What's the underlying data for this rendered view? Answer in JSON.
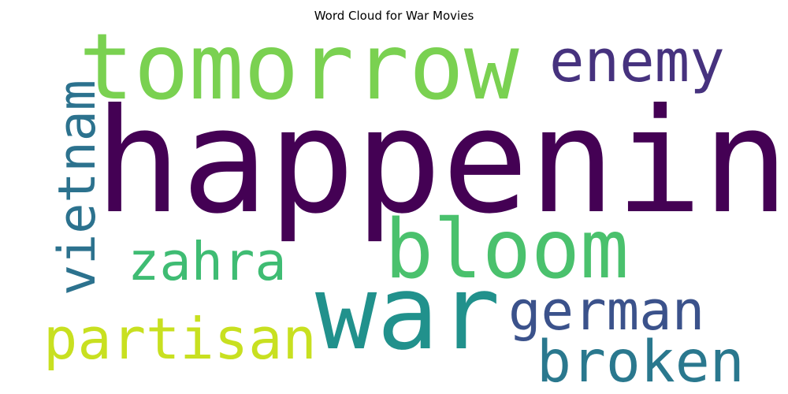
{
  "chart_data": {
    "type": "wordcloud",
    "title": "Word Cloud for War Movies",
    "words": [
      {
        "text": "happenin",
        "color": "#440154",
        "orientation": "horizontal"
      },
      {
        "text": "tomorrow",
        "color": "#7ad151",
        "orientation": "horizontal"
      },
      {
        "text": "war",
        "color": "#21918c",
        "orientation": "horizontal"
      },
      {
        "text": "bloom",
        "color": "#4ac16d",
        "orientation": "horizontal"
      },
      {
        "text": "enemy",
        "color": "#46327e",
        "orientation": "horizontal"
      },
      {
        "text": "partisan",
        "color": "#c8e020",
        "orientation": "horizontal"
      },
      {
        "text": "broken",
        "color": "#2a788e",
        "orientation": "horizontal"
      },
      {
        "text": "german",
        "color": "#3b528b",
        "orientation": "horizontal"
      },
      {
        "text": "zahra",
        "color": "#3fbc73",
        "orientation": "horizontal"
      },
      {
        "text": "vietnam",
        "color": "#2c728e",
        "orientation": "vertical"
      }
    ]
  }
}
